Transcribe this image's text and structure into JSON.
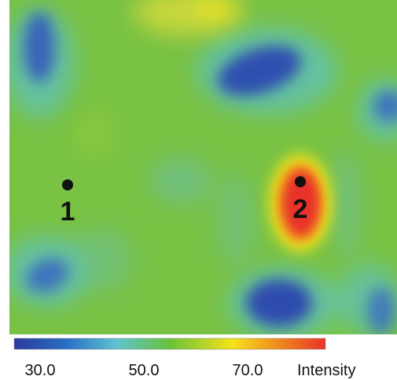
{
  "chart_data": {
    "type": "heatmap",
    "colorbar": {
      "label": "Intensity",
      "ticks": [
        {
          "value": 30,
          "label": "30.0"
        },
        {
          "value": 50,
          "label": "50.0"
        },
        {
          "value": 70,
          "label": "70.0"
        }
      ],
      "range": [
        25,
        85
      ],
      "colors": [
        "#2b3a9c",
        "#2a6fc5",
        "#5fc3cf",
        "#69c23a",
        "#f4e21a",
        "#f08a1e",
        "#e8332a"
      ]
    },
    "background_value": 52,
    "markers": [
      {
        "label": "1"
      },
      {
        "label": "2"
      }
    ]
  }
}
